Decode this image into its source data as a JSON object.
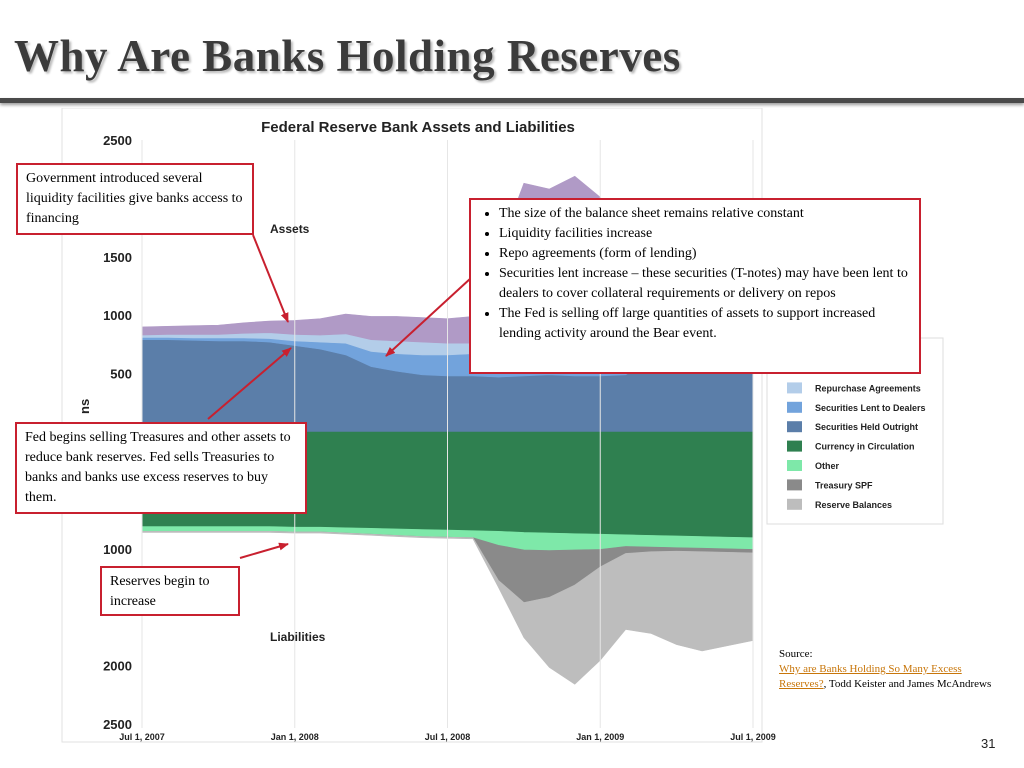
{
  "slide": {
    "title": "Why Are Banks Holding Reserves",
    "page_number": "31"
  },
  "callouts": {
    "liquidity": "Government introduced several liquidity facilities give banks access to financing",
    "bullets": [
      "The size of the balance sheet remains relative constant",
      "Liquidity facilities increase",
      "Repo agreements (form of lending)",
      "Securities lent increase –  these securities (T-notes) may have been lent to dealers to cover collateral requirements or delivery on repos",
      "The Fed is selling off large quantities of assets to support increased lending activity around the Bear event."
    ],
    "fed_selling": "Fed begins selling Treasures and other assets to reduce bank reserves. Fed sells Treasuries to banks and banks use excess reserves to buy them.",
    "reserves": "Reserves begin to increase"
  },
  "source": {
    "label": "Source:",
    "link_text": "Why are Banks Holding So Many Excess Reserves?",
    "authors": ", Todd Keister and James McAndrews"
  },
  "colors": {
    "accent_red": "#c8202f",
    "other_assets": "#b09ac6",
    "repurchase_agreements": "#b3cde9",
    "securities_lent": "#72a3dc",
    "securities_held": "#5b7ea9",
    "currency": "#2f8050",
    "other_liabilities": "#7ee8a9",
    "treasury_spf": "#8a8a8a",
    "reserve_balances": "#bdbdbd"
  },
  "chart_data": {
    "type": "area",
    "title": "Federal Reserve Bank Assets and Liabilities",
    "ylabel": "ns",
    "section_labels": [
      "Assets",
      "Liabilities"
    ],
    "x": [
      "2007-07",
      "2007-08",
      "2007-09",
      "2007-10",
      "2007-11",
      "2007-12",
      "2008-01",
      "2008-02",
      "2008-03",
      "2008-04",
      "2008-05",
      "2008-06",
      "2008-07",
      "2008-08",
      "2008-09",
      "2008-10",
      "2008-11",
      "2008-12",
      "2009-01",
      "2009-02",
      "2009-03",
      "2009-04",
      "2009-05",
      "2009-06",
      "2009-07"
    ],
    "x_tick_labels": [
      "Jul 1, 2007",
      "Jan 1, 2008",
      "Jul 1, 2008",
      "Jan 1, 2009",
      "Jul 1, 2009"
    ],
    "y_tick_values": [
      2500,
      2000,
      1500,
      1000,
      500,
      0,
      500,
      1000,
      1500,
      2000,
      2500
    ],
    "y_tick_labels": [
      "2500",
      "2000",
      "1500",
      "1000",
      "500",
      "",
      "500",
      "1000",
      "1500",
      "2000",
      "2500"
    ],
    "ylim": [
      -2500,
      2500
    ],
    "grid": false,
    "legend_position": "right",
    "asset_series": [
      {
        "name": "Securities Held Outright",
        "color": "#5b7ea9",
        "values": [
          790,
          790,
          785,
          780,
          780,
          770,
          740,
          710,
          660,
          560,
          520,
          490,
          480,
          480,
          470,
          480,
          490,
          480,
          480,
          490,
          620,
          700,
          760,
          770,
          790
        ]
      },
      {
        "name": "Securities Lent to Dealers",
        "color": "#72a3dc",
        "values": [
          20,
          20,
          20,
          25,
          25,
          30,
          40,
          60,
          100,
          130,
          150,
          170,
          180,
          190,
          200,
          230,
          250,
          250,
          240,
          220,
          200,
          180,
          160,
          150,
          140
        ]
      },
      {
        "name": "Repurchase Agreements",
        "color": "#b3cde9",
        "values": [
          20,
          25,
          30,
          30,
          40,
          50,
          55,
          60,
          80,
          100,
          110,
          110,
          100,
          90,
          100,
          80,
          80,
          80,
          70,
          60,
          50,
          40,
          40,
          30,
          30
        ]
      },
      {
        "name": "Other",
        "color": "#b09ac6",
        "values": [
          70,
          70,
          75,
          80,
          90,
          100,
          120,
          140,
          170,
          200,
          210,
          210,
          210,
          230,
          780,
          1340,
          1260,
          1380,
          1220,
          940,
          900,
          890,
          960,
          900,
          820
        ]
      }
    ],
    "liability_series": [
      {
        "name": "Currency in Circulation",
        "color": "#2f8050",
        "values": [
          810,
          810,
          810,
          810,
          810,
          810,
          815,
          815,
          820,
          825,
          830,
          835,
          840,
          845,
          850,
          860,
          865,
          870,
          875,
          880,
          885,
          890,
          895,
          900,
          905
        ]
      },
      {
        "name": "Other",
        "color": "#7ee8a9",
        "values": [
          40,
          40,
          40,
          40,
          40,
          40,
          40,
          40,
          45,
          50,
          55,
          60,
          60,
          60,
          120,
          150,
          150,
          140,
          130,
          100,
          100,
          100,
          100,
          100,
          100
        ]
      },
      {
        "name": "Treasury SPF",
        "color": "#8a8a8a",
        "values": [
          0,
          0,
          0,
          0,
          0,
          0,
          0,
          0,
          0,
          0,
          0,
          0,
          0,
          0,
          300,
          450,
          400,
          300,
          150,
          60,
          40,
          30,
          30,
          30,
          30
        ]
      },
      {
        "name": "Reserve Balances",
        "color": "#bdbdbd",
        "values": [
          10,
          10,
          10,
          10,
          10,
          10,
          10,
          10,
          10,
          10,
          10,
          10,
          10,
          10,
          60,
          300,
          600,
          850,
          800,
          650,
          700,
          800,
          850,
          800,
          750
        ]
      }
    ],
    "legend": [
      "Other",
      "Repurchase Agreements",
      "Securities Lent to Dealers",
      "Securities Held Outright",
      "Currency in Circulation",
      "Other",
      "Treasury SPF",
      "Reserve Balances"
    ],
    "legend_colors": [
      "#b09ac6",
      "#b3cde9",
      "#72a3dc",
      "#5b7ea9",
      "#2f8050",
      "#7ee8a9",
      "#8a8a8a",
      "#bdbdbd"
    ]
  }
}
